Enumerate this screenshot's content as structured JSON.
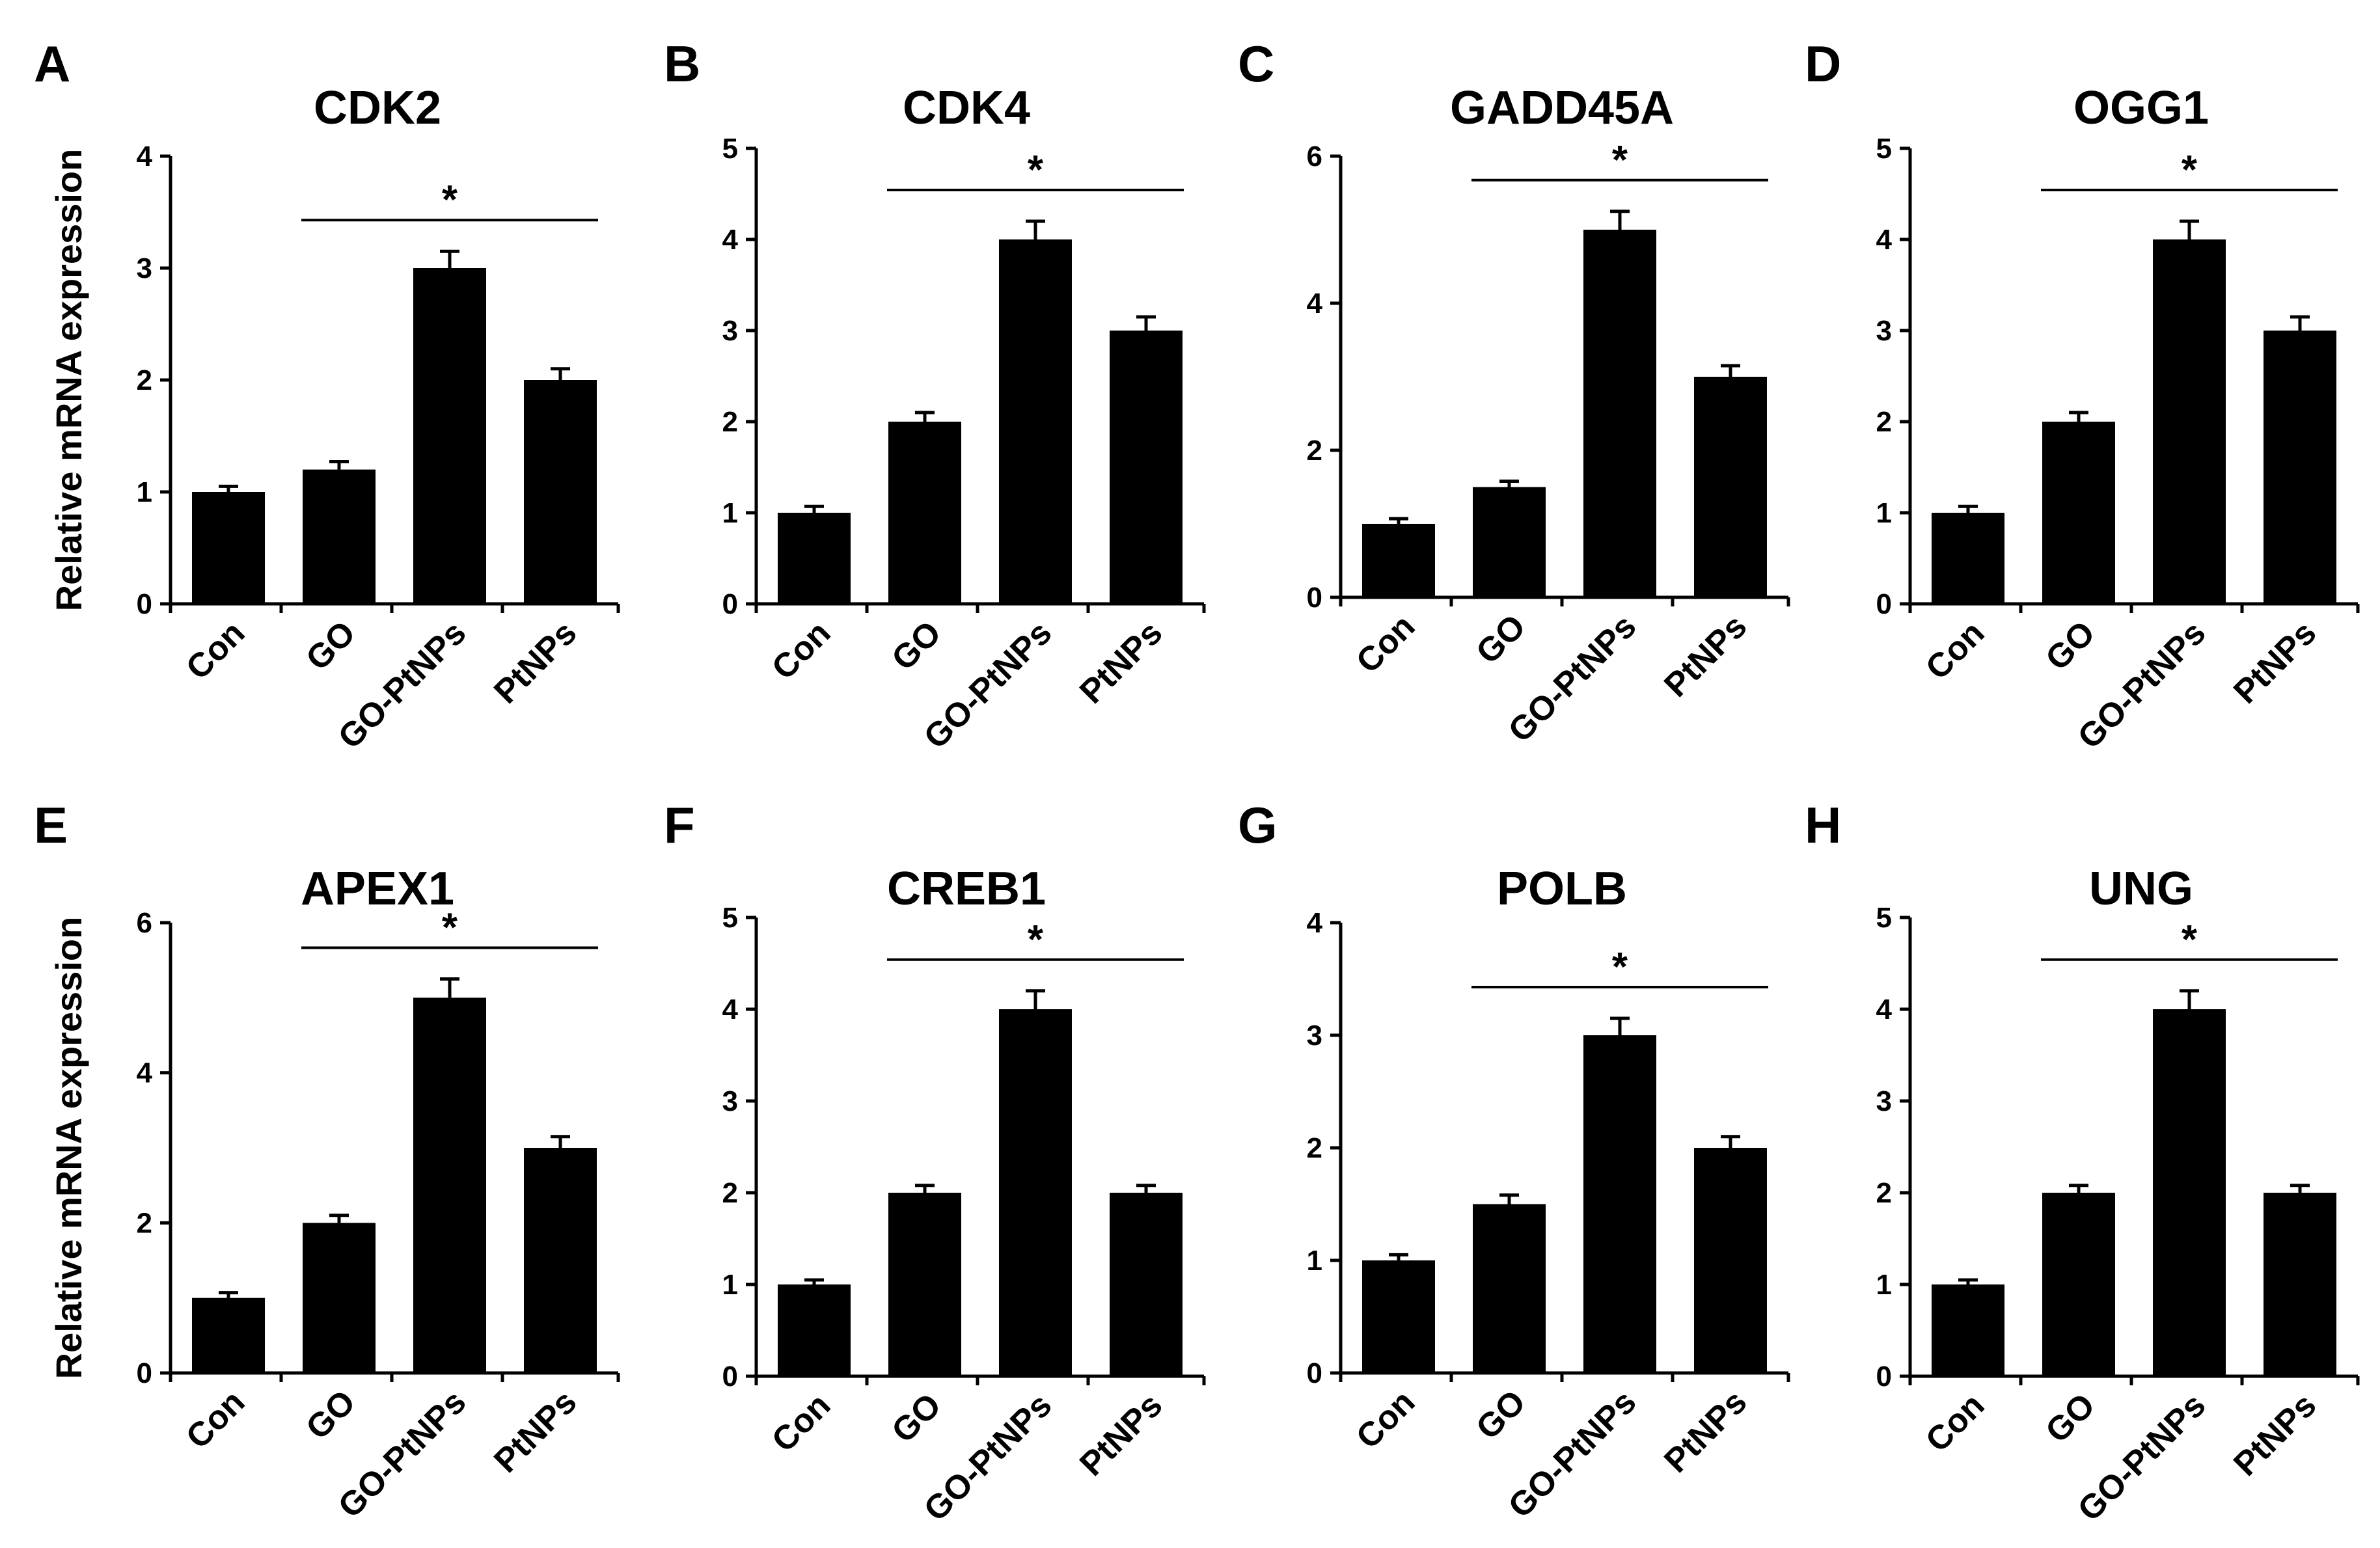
{
  "figure": {
    "ylabel": "Relative mRNA expression",
    "categories": [
      "Con",
      "GO",
      "GO-PtNPs",
      "PtNPs"
    ],
    "bar_color": "#000000",
    "significance_marker": "*"
  },
  "chart_data": [
    {
      "type": "bar",
      "panel": "A",
      "title": "CDK2",
      "ylabel": "Relative mRNA expression",
      "categories": [
        "Con",
        "GO",
        "GO-PtNPs",
        "PtNPs"
      ],
      "values": [
        1.0,
        1.2,
        3.0,
        2.0
      ],
      "errors": [
        0.05,
        0.07,
        0.15,
        0.1
      ],
      "ylim": [
        0,
        4
      ],
      "yticks": [
        0,
        1,
        2,
        3,
        4
      ],
      "annotation": {
        "text": "*",
        "from": "GO",
        "to": "PtNPs"
      }
    },
    {
      "type": "bar",
      "panel": "B",
      "title": "CDK4",
      "ylabel": "",
      "categories": [
        "Con",
        "GO",
        "GO-PtNPs",
        "PtNPs"
      ],
      "values": [
        1.0,
        2.0,
        4.0,
        3.0
      ],
      "errors": [
        0.07,
        0.1,
        0.2,
        0.15
      ],
      "ylim": [
        0,
        5
      ],
      "yticks": [
        0,
        1,
        2,
        3,
        4,
        5
      ],
      "annotation": {
        "text": "*",
        "from": "GO",
        "to": "PtNPs"
      }
    },
    {
      "type": "bar",
      "panel": "C",
      "title": "GADD45A",
      "ylabel": "",
      "categories": [
        "Con",
        "GO",
        "GO-PtNPs",
        "PtNPs"
      ],
      "values": [
        1.0,
        1.5,
        5.0,
        3.0
      ],
      "errors": [
        0.07,
        0.08,
        0.25,
        0.15
      ],
      "ylim": [
        0,
        6
      ],
      "yticks": [
        0,
        2,
        4,
        6
      ],
      "annotation": {
        "text": "*",
        "from": "GO",
        "to": "PtNPs"
      }
    },
    {
      "type": "bar",
      "panel": "D",
      "title": "OGG1",
      "ylabel": "",
      "categories": [
        "Con",
        "GO",
        "GO-PtNPs",
        "PtNPs"
      ],
      "values": [
        1.0,
        2.0,
        4.0,
        3.0
      ],
      "errors": [
        0.07,
        0.1,
        0.2,
        0.15
      ],
      "ylim": [
        0,
        5
      ],
      "yticks": [
        0,
        1,
        2,
        3,
        4,
        5
      ],
      "annotation": {
        "text": "*",
        "from": "GO",
        "to": "PtNPs"
      }
    },
    {
      "type": "bar",
      "panel": "E",
      "title": "APEX1",
      "ylabel": "Relative mRNA expression",
      "categories": [
        "Con",
        "GO",
        "GO-PtNPs",
        "PtNPs"
      ],
      "values": [
        1.0,
        2.0,
        5.0,
        3.0
      ],
      "errors": [
        0.07,
        0.1,
        0.25,
        0.15
      ],
      "ylim": [
        0,
        6
      ],
      "yticks": [
        0,
        2,
        4,
        6
      ],
      "annotation": {
        "text": "*",
        "from": "GO",
        "to": "PtNPs"
      }
    },
    {
      "type": "bar",
      "panel": "F",
      "title": "CREB1",
      "ylabel": "",
      "categories": [
        "Con",
        "GO",
        "GO-PtNPs",
        "PtNPs"
      ],
      "values": [
        1.0,
        2.0,
        4.0,
        2.0
      ],
      "errors": [
        0.05,
        0.08,
        0.2,
        0.08
      ],
      "ylim": [
        0,
        5
      ],
      "yticks": [
        0,
        1,
        2,
        3,
        4,
        5
      ],
      "annotation": {
        "text": "*",
        "from": "GO",
        "to": "PtNPs"
      }
    },
    {
      "type": "bar",
      "panel": "G",
      "title": "POLB",
      "ylabel": "",
      "categories": [
        "Con",
        "GO",
        "GO-PtNPs",
        "PtNPs"
      ],
      "values": [
        1.0,
        1.5,
        3.0,
        2.0
      ],
      "errors": [
        0.05,
        0.08,
        0.15,
        0.1
      ],
      "ylim": [
        0,
        4
      ],
      "yticks": [
        0,
        1,
        2,
        3,
        4
      ],
      "annotation": {
        "text": "*",
        "from": "GO",
        "to": "PtNPs"
      }
    },
    {
      "type": "bar",
      "panel": "H",
      "title": "UNG",
      "ylabel": "",
      "categories": [
        "Con",
        "GO",
        "GO-PtNPs",
        "PtNPs"
      ],
      "values": [
        1.0,
        2.0,
        4.0,
        2.0
      ],
      "errors": [
        0.05,
        0.08,
        0.2,
        0.08
      ],
      "ylim": [
        0,
        5
      ],
      "yticks": [
        0,
        1,
        2,
        3,
        4,
        5
      ],
      "annotation": {
        "text": "*",
        "from": "GO",
        "to": "PtNPs"
      }
    }
  ]
}
